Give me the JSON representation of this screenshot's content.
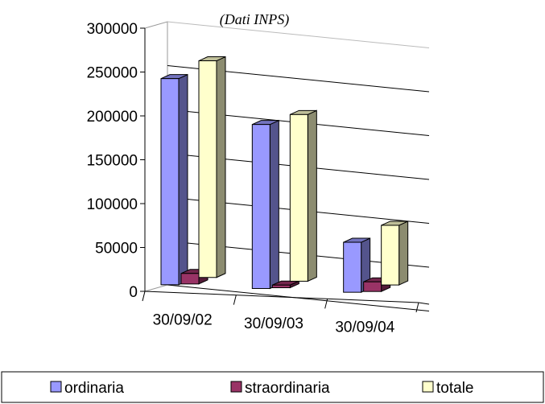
{
  "chart_data": {
    "type": "bar",
    "subtitle": "(Dati INPS)",
    "categories": [
      "30/09/02",
      "30/09/03",
      "30/09/04"
    ],
    "series": [
      {
        "name": "ordinaria",
        "values": [
          235000,
          187000,
          57000
        ],
        "color": "#9999FF"
      },
      {
        "name": "straordinaria",
        "values": [
          12000,
          3000,
          11000
        ],
        "color": "#993366"
      },
      {
        "name": "totale",
        "values": [
          247000,
          190000,
          68000
        ],
        "color": "#FFFFCC"
      }
    ],
    "ylim": [
      0,
      300000
    ],
    "yticks": [
      "0",
      "50000",
      "100000",
      "150000",
      "200000",
      "250000",
      "300000"
    ],
    "grid": true,
    "legend_position": "bottom"
  }
}
